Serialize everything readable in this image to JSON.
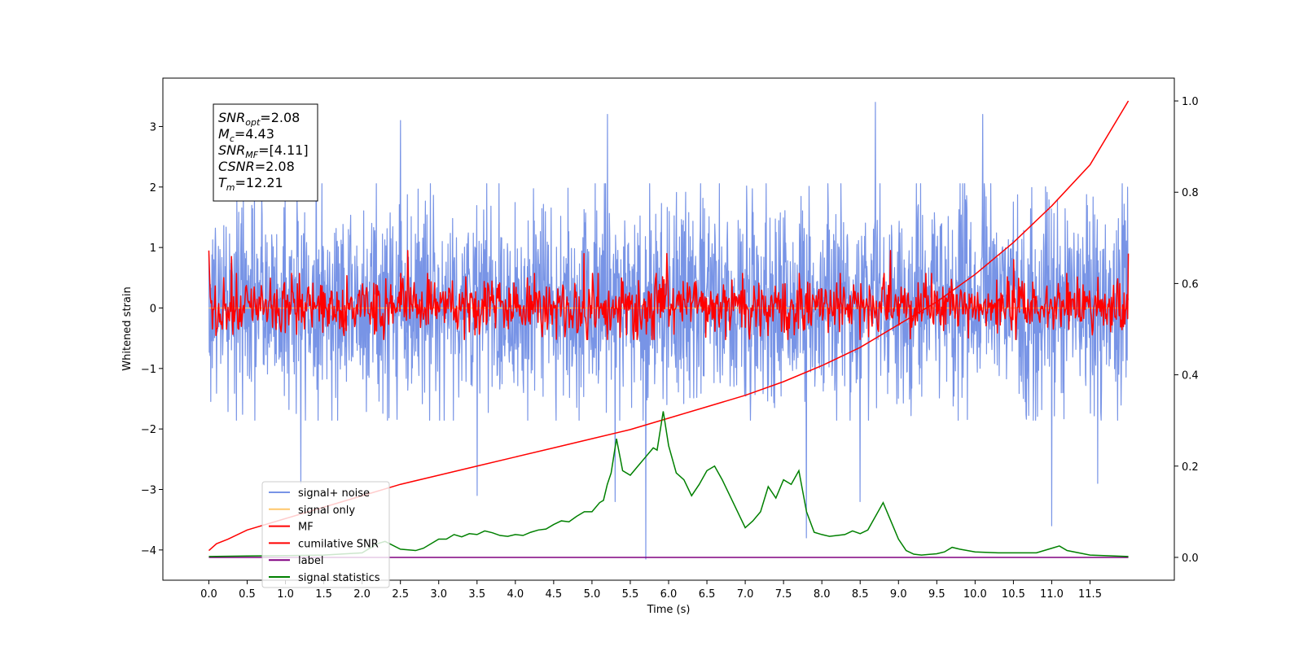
{
  "chart_data": {
    "type": "line",
    "title": "",
    "xlabel": "Time (s)",
    "ylabel": "Whitened strain",
    "xlim": [
      -0.6,
      12.6
    ],
    "ylim": [
      -4.5,
      3.8
    ],
    "ylim_right": [
      -0.05,
      1.05
    ],
    "x_ticks": [
      0.0,
      0.5,
      1.0,
      1.5,
      2.0,
      2.5,
      3.0,
      3.5,
      4.0,
      4.5,
      5.0,
      5.5,
      6.0,
      6.5,
      7.0,
      7.5,
      8.0,
      8.5,
      9.0,
      9.5,
      10.0,
      10.5,
      11.0,
      11.5
    ],
    "x_tick_labels": [
      "0.0",
      "0.5",
      "1.0",
      "1.5",
      "2.0",
      "2.5",
      "3.0",
      "3.5",
      "4.0",
      "4.5",
      "5.0",
      "5.5",
      "6.0",
      "6.5",
      "7.0",
      "7.5",
      "8.0",
      "8.5",
      "9.0",
      "9.5",
      "10.0",
      "10.5",
      "11.0",
      "11.5"
    ],
    "y_ticks": [
      -4,
      -3,
      -2,
      -1,
      0,
      1,
      2,
      3
    ],
    "y_tick_labels": [
      "−4",
      "−3",
      "−2",
      "−1",
      "0",
      "1",
      "2",
      "3"
    ],
    "y_ticks_right": [
      0.0,
      0.2,
      0.4,
      0.6,
      0.8,
      1.0
    ],
    "y_tick_labels_right": [
      "0.0",
      "0.2",
      "0.4",
      "0.6",
      "0.8",
      "1.0"
    ],
    "legend_position": "lower-left",
    "annotation": [
      {
        "main": "SNR",
        "sub": "opt",
        "rest": "=2.08"
      },
      {
        "main": "M",
        "sub": "c",
        "rest": "=4.43"
      },
      {
        "main": "SNR",
        "sub": "MF",
        "rest": "=[4.11]"
      },
      {
        "main": "CSNR",
        "sub": "",
        "rest": "=2.08"
      },
      {
        "main": "T",
        "sub": "m",
        "rest": "=12.21"
      }
    ],
    "series": [
      {
        "key": "signal_noise",
        "name": "signal+ noise",
        "color": "#7894e6",
        "axis": "left",
        "style": "noise",
        "x_range": [
          0.0,
          12.0
        ],
        "center": 0.0,
        "typical_range": [
          -1.6,
          1.8
        ],
        "peaks": [
          [
            1.4,
            3.25
          ],
          [
            2.5,
            3.1
          ],
          [
            5.2,
            3.2
          ],
          [
            8.7,
            3.4
          ],
          [
            10.1,
            3.2
          ]
        ],
        "troughs": [
          [
            1.2,
            -2.9
          ],
          [
            3.5,
            -3.1
          ],
          [
            5.3,
            -3.2
          ],
          [
            5.7,
            -4.15
          ],
          [
            7.8,
            -3.8
          ],
          [
            8.5,
            -3.2
          ],
          [
            11.0,
            -3.6
          ],
          [
            11.6,
            -2.9
          ]
        ]
      },
      {
        "key": "signal_only",
        "name": "signal only",
        "color": "#ffc76a",
        "axis": "left",
        "style": "flat",
        "x": [
          0.0,
          12.0
        ],
        "y": [
          0.0,
          0.0
        ]
      },
      {
        "key": "mf",
        "name": "MF",
        "color": "#ff0000",
        "axis": "left",
        "style": "noise",
        "x_range": [
          0.0,
          12.0
        ],
        "center": 0.0,
        "typical_range": [
          -0.45,
          0.5
        ],
        "start_value": 0.95,
        "end_value": 0.9,
        "peaks": [
          [
            0.3,
            0.85
          ],
          [
            2.6,
            0.95
          ],
          [
            4.9,
            0.9
          ],
          [
            5.98,
            0.9
          ],
          [
            8.9,
            0.95
          ],
          [
            10.5,
            0.8
          ]
        ],
        "troughs": []
      },
      {
        "key": "cum_snr",
        "name": "cumilative SNR",
        "color": "#ff0000",
        "axis": "right",
        "style": "curve",
        "x": [
          0.0,
          0.1,
          0.25,
          0.5,
          1.0,
          1.5,
          2.0,
          2.5,
          3.0,
          3.5,
          4.0,
          4.5,
          5.0,
          5.5,
          6.0,
          6.5,
          7.0,
          7.5,
          8.0,
          8.5,
          9.0,
          9.5,
          10.0,
          10.5,
          11.0,
          11.5,
          12.0
        ],
        "y": [
          0.015,
          0.03,
          0.04,
          0.06,
          0.085,
          0.11,
          0.135,
          0.16,
          0.18,
          0.2,
          0.22,
          0.24,
          0.26,
          0.28,
          0.305,
          0.33,
          0.355,
          0.385,
          0.42,
          0.46,
          0.51,
          0.56,
          0.62,
          0.69,
          0.77,
          0.86,
          1.0
        ]
      },
      {
        "key": "label",
        "name": "label",
        "color": "#800080",
        "axis": "right",
        "style": "flat",
        "x": [
          0.0,
          12.0
        ],
        "y": [
          0.0,
          0.0
        ]
      },
      {
        "key": "signal_stats",
        "name": "signal statistics",
        "color": "#008000",
        "axis": "right",
        "style": "curve",
        "x": [
          0.0,
          0.5,
          1.0,
          1.5,
          2.0,
          2.1,
          2.2,
          2.3,
          2.5,
          2.7,
          2.8,
          2.9,
          3.0,
          3.1,
          3.2,
          3.3,
          3.4,
          3.5,
          3.6,
          3.7,
          3.8,
          3.9,
          4.0,
          4.1,
          4.2,
          4.3,
          4.4,
          4.5,
          4.6,
          4.7,
          4.8,
          4.9,
          5.0,
          5.1,
          5.15,
          5.2,
          5.25,
          5.32,
          5.4,
          5.5,
          5.6,
          5.7,
          5.8,
          5.85,
          5.93,
          6.0,
          6.1,
          6.2,
          6.3,
          6.4,
          6.5,
          6.6,
          6.7,
          6.8,
          6.9,
          7.0,
          7.1,
          7.2,
          7.3,
          7.4,
          7.5,
          7.6,
          7.7,
          7.8,
          7.9,
          8.0,
          8.1,
          8.2,
          8.3,
          8.4,
          8.5,
          8.6,
          8.7,
          8.8,
          8.9,
          9.0,
          9.1,
          9.2,
          9.3,
          9.5,
          9.6,
          9.7,
          9.8,
          10.0,
          10.3,
          10.5,
          10.8,
          11.0,
          11.1,
          11.2,
          11.5,
          12.0
        ],
        "y": [
          0.002,
          0.003,
          0.004,
          0.005,
          0.01,
          0.02,
          0.03,
          0.035,
          0.018,
          0.015,
          0.02,
          0.03,
          0.04,
          0.04,
          0.05,
          0.045,
          0.052,
          0.05,
          0.058,
          0.054,
          0.048,
          0.046,
          0.05,
          0.048,
          0.055,
          0.06,
          0.062,
          0.072,
          0.08,
          0.078,
          0.09,
          0.1,
          0.1,
          0.12,
          0.125,
          0.16,
          0.185,
          0.26,
          0.19,
          0.18,
          0.2,
          0.22,
          0.24,
          0.235,
          0.32,
          0.245,
          0.185,
          0.17,
          0.135,
          0.16,
          0.19,
          0.2,
          0.17,
          0.135,
          0.1,
          0.065,
          0.08,
          0.1,
          0.155,
          0.13,
          0.17,
          0.16,
          0.19,
          0.1,
          0.055,
          0.05,
          0.046,
          0.048,
          0.05,
          0.058,
          0.052,
          0.06,
          0.09,
          0.12,
          0.08,
          0.04,
          0.015,
          0.007,
          0.005,
          0.008,
          0.012,
          0.022,
          0.018,
          0.012,
          0.01,
          0.01,
          0.01,
          0.02,
          0.025,
          0.015,
          0.005,
          0.002
        ]
      }
    ]
  }
}
